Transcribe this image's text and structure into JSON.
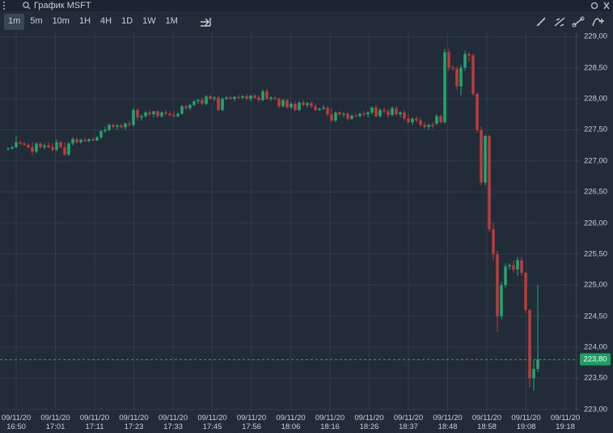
{
  "toolbar": {
    "title": "График MSFT",
    "timeframes": [
      "1m",
      "5m",
      "10m",
      "1H",
      "4H",
      "1D",
      "1W",
      "1M"
    ],
    "active_timeframe": 0
  },
  "chart_data": {
    "type": "candlestick",
    "up_color": "#22a66d",
    "down_color": "#bd3a3f",
    "grid": true,
    "ylim": [
      222.97,
      229.07
    ],
    "yticks": [
      {
        "value": 223,
        "label": "223,00"
      },
      {
        "value": 223.5,
        "label": "223,50"
      },
      {
        "value": 224,
        "label": "224,00"
      },
      {
        "value": 224.5,
        "label": "224,50"
      },
      {
        "value": 225,
        "label": "225,00"
      },
      {
        "value": 225.5,
        "label": "225,50"
      },
      {
        "value": 226,
        "label": "226,00"
      },
      {
        "value": 226.5,
        "label": "226,50"
      },
      {
        "value": 227,
        "label": "227,00"
      },
      {
        "value": 227.5,
        "label": "227,50"
      },
      {
        "value": 228,
        "label": "228,00"
      },
      {
        "value": 228.5,
        "label": "228,50"
      },
      {
        "value": 229,
        "label": "229,00"
      }
    ],
    "xlim": [
      -2,
      140.4
    ],
    "xticks": [
      {
        "value": 2,
        "label": "09/11/20 16:50"
      },
      {
        "value": 11.7,
        "label": "09/11/20 17:01"
      },
      {
        "value": 21.4,
        "label": "09/11/20 17:11"
      },
      {
        "value": 31.1,
        "label": "09/11/20 17:23"
      },
      {
        "value": 40.8,
        "label": "09/11/20 17:33"
      },
      {
        "value": 50.5,
        "label": "09/11/20 17:45"
      },
      {
        "value": 60.2,
        "label": "09/11/20 17:56"
      },
      {
        "value": 69.9,
        "label": "09/11/20 18:06"
      },
      {
        "value": 79.6,
        "label": "09/11/20 18:16"
      },
      {
        "value": 89.3,
        "label": "09/11/20 18:26"
      },
      {
        "value": 99,
        "label": "09/11/20 18:37"
      },
      {
        "value": 108.7,
        "label": "09/11/20 18:48"
      },
      {
        "value": 118.4,
        "label": "09/11/20 18:58"
      },
      {
        "value": 128.1,
        "label": "09/11/20 19:08"
      },
      {
        "value": 137.8,
        "label": "09/11/20 19:18"
      }
    ],
    "last_price_label": "223,80",
    "ohlc": [
      [
        227.2,
        227.22,
        227.17,
        227.2
      ],
      [
        227.2,
        227.24,
        227.18,
        227.22
      ],
      [
        227.22,
        227.4,
        227.2,
        227.3
      ],
      [
        227.3,
        227.32,
        227.25,
        227.28
      ],
      [
        227.28,
        227.3,
        227.24,
        227.26
      ],
      [
        227.26,
        227.28,
        227.2,
        227.22
      ],
      [
        227.22,
        227.3,
        227.1,
        227.15
      ],
      [
        227.15,
        227.3,
        227.12,
        227.28
      ],
      [
        227.28,
        227.3,
        227.2,
        227.22
      ],
      [
        227.22,
        227.28,
        227.18,
        227.25
      ],
      [
        227.25,
        227.3,
        227.2,
        227.22
      ],
      [
        227.22,
        227.28,
        227.15,
        227.18
      ],
      [
        227.18,
        227.35,
        227.15,
        227.3
      ],
      [
        227.3,
        227.32,
        227.2,
        227.22
      ],
      [
        227.22,
        227.3,
        227.08,
        227.1
      ],
      [
        227.1,
        227.3,
        227.08,
        227.28
      ],
      [
        227.28,
        227.38,
        227.25,
        227.35
      ],
      [
        227.35,
        227.38,
        227.28,
        227.3
      ],
      [
        227.3,
        227.36,
        227.28,
        227.34
      ],
      [
        227.34,
        227.38,
        227.3,
        227.32
      ],
      [
        227.32,
        227.36,
        227.3,
        227.35
      ],
      [
        227.35,
        227.38,
        227.32,
        227.33
      ],
      [
        227.33,
        227.4,
        227.32,
        227.38
      ],
      [
        227.38,
        227.5,
        227.35,
        227.48
      ],
      [
        227.48,
        227.55,
        227.45,
        227.5
      ],
      [
        227.5,
        227.6,
        227.48,
        227.58
      ],
      [
        227.58,
        227.6,
        227.52,
        227.55
      ],
      [
        227.55,
        227.6,
        227.5,
        227.57
      ],
      [
        227.57,
        227.6,
        227.52,
        227.54
      ],
      [
        227.54,
        227.62,
        227.5,
        227.6
      ],
      [
        227.6,
        227.65,
        227.55,
        227.58
      ],
      [
        227.58,
        227.85,
        227.55,
        227.82
      ],
      [
        227.82,
        227.85,
        227.65,
        227.7
      ],
      [
        227.7,
        227.75,
        227.65,
        227.72
      ],
      [
        227.72,
        227.8,
        227.7,
        227.78
      ],
      [
        227.78,
        227.82,
        227.72,
        227.75
      ],
      [
        227.75,
        227.8,
        227.7,
        227.8
      ],
      [
        227.8,
        227.82,
        227.7,
        227.72
      ],
      [
        227.72,
        227.8,
        227.7,
        227.78
      ],
      [
        227.78,
        227.82,
        227.74,
        227.76
      ],
      [
        227.76,
        227.8,
        227.72,
        227.74
      ],
      [
        227.74,
        227.8,
        227.7,
        227.72
      ],
      [
        227.72,
        227.78,
        227.7,
        227.76
      ],
      [
        227.76,
        227.9,
        227.74,
        227.88
      ],
      [
        227.88,
        227.9,
        227.82,
        227.85
      ],
      [
        227.85,
        227.92,
        227.82,
        227.9
      ],
      [
        227.9,
        227.98,
        227.88,
        227.96
      ],
      [
        227.96,
        228.0,
        227.92,
        227.98
      ],
      [
        227.98,
        228.02,
        227.9,
        227.92
      ],
      [
        227.92,
        228.06,
        227.9,
        228.04
      ],
      [
        228.04,
        228.06,
        227.98,
        228.0
      ],
      [
        228.0,
        228.04,
        227.96,
        228.02
      ],
      [
        228.02,
        228.05,
        227.8,
        227.82
      ],
      [
        227.82,
        228.02,
        227.8,
        228.0
      ],
      [
        228.0,
        228.04,
        227.98,
        228.02
      ],
      [
        228.02,
        228.05,
        227.98,
        228.0
      ],
      [
        228.0,
        228.04,
        227.96,
        228.03
      ],
      [
        228.03,
        228.06,
        228.0,
        228.02
      ],
      [
        228.02,
        228.06,
        228.0,
        228.04
      ],
      [
        228.04,
        228.08,
        227.98,
        228.0
      ],
      [
        228.0,
        228.06,
        227.96,
        228.05
      ],
      [
        228.05,
        228.08,
        228.0,
        228.02
      ],
      [
        228.02,
        228.06,
        227.95,
        227.98
      ],
      [
        227.98,
        228.15,
        227.96,
        228.12
      ],
      [
        228.12,
        228.16,
        227.98,
        228.0
      ],
      [
        228.0,
        228.04,
        227.96,
        228.02
      ],
      [
        228.02,
        228.04,
        227.98,
        228.0
      ],
      [
        228.0,
        228.02,
        227.85,
        227.88
      ],
      [
        227.88,
        228.0,
        227.86,
        227.98
      ],
      [
        227.98,
        228.0,
        227.84,
        227.86
      ],
      [
        227.86,
        227.95,
        227.84,
        227.92
      ],
      [
        227.92,
        227.96,
        227.8,
        227.82
      ],
      [
        227.82,
        227.96,
        227.8,
        227.94
      ],
      [
        227.94,
        227.98,
        227.88,
        227.9
      ],
      [
        227.9,
        227.95,
        227.86,
        227.93
      ],
      [
        227.93,
        227.96,
        227.85,
        227.88
      ],
      [
        227.88,
        227.92,
        227.8,
        227.82
      ],
      [
        227.82,
        227.86,
        227.8,
        227.84
      ],
      [
        227.84,
        227.9,
        227.82,
        227.86
      ],
      [
        227.86,
        227.88,
        227.72,
        227.75
      ],
      [
        227.75,
        227.85,
        227.62,
        227.65
      ],
      [
        227.65,
        227.8,
        227.62,
        227.78
      ],
      [
        227.78,
        227.8,
        227.72,
        227.75
      ],
      [
        227.75,
        227.78,
        227.7,
        227.76
      ],
      [
        227.76,
        227.78,
        227.65,
        227.68
      ],
      [
        227.68,
        227.75,
        227.66,
        227.73
      ],
      [
        227.73,
        227.76,
        227.7,
        227.72
      ],
      [
        227.72,
        227.78,
        227.7,
        227.76
      ],
      [
        227.76,
        227.8,
        227.72,
        227.75
      ],
      [
        227.75,
        227.8,
        227.7,
        227.78
      ],
      [
        227.78,
        227.88,
        227.75,
        227.86
      ],
      [
        227.86,
        227.9,
        227.7,
        227.72
      ],
      [
        227.72,
        227.85,
        227.7,
        227.82
      ],
      [
        227.82,
        227.86,
        227.76,
        227.8
      ],
      [
        227.8,
        227.84,
        227.7,
        227.74
      ],
      [
        227.74,
        227.88,
        227.72,
        227.85
      ],
      [
        227.85,
        227.88,
        227.72,
        227.75
      ],
      [
        227.75,
        227.8,
        227.7,
        227.78
      ],
      [
        227.78,
        227.82,
        227.65,
        227.68
      ],
      [
        227.68,
        227.75,
        227.6,
        227.62
      ],
      [
        227.62,
        227.7,
        227.58,
        227.68
      ],
      [
        227.68,
        227.72,
        227.62,
        227.65
      ],
      [
        227.65,
        227.7,
        227.55,
        227.58
      ],
      [
        227.58,
        227.62,
        227.52,
        227.55
      ],
      [
        227.55,
        227.6,
        227.5,
        227.58
      ],
      [
        227.58,
        227.62,
        227.52,
        227.56
      ],
      [
        227.6,
        227.75,
        227.58,
        227.72
      ],
      [
        227.72,
        227.75,
        227.6,
        227.62
      ],
      [
        227.62,
        228.8,
        227.6,
        228.75
      ],
      [
        228.75,
        228.8,
        228.45,
        228.5
      ],
      [
        228.5,
        228.55,
        228.45,
        228.48
      ],
      [
        228.48,
        228.52,
        228.15,
        228.2
      ],
      [
        228.2,
        228.55,
        228.05,
        228.5
      ],
      [
        228.5,
        228.78,
        228.45,
        228.72
      ],
      [
        228.72,
        228.75,
        228.6,
        228.7
      ],
      [
        228.7,
        228.72,
        228.05,
        228.08
      ],
      [
        228.08,
        228.1,
        227.45,
        227.5
      ],
      [
        227.5,
        227.55,
        226.6,
        226.65
      ],
      [
        226.65,
        227.42,
        226.6,
        227.4
      ],
      [
        227.4,
        227.42,
        225.85,
        225.9
      ],
      [
        225.9,
        226.0,
        225.4,
        225.5
      ],
      [
        225.5,
        225.55,
        224.25,
        224.5
      ],
      [
        224.5,
        225.05,
        224.45,
        225.0
      ],
      [
        225.0,
        225.35,
        224.95,
        225.3
      ],
      [
        225.3,
        225.35,
        225.25,
        225.32
      ],
      [
        225.32,
        225.4,
        225.2,
        225.25
      ],
      [
        225.25,
        225.45,
        225.15,
        225.4
      ],
      [
        225.4,
        225.45,
        225.15,
        225.2
      ],
      [
        225.2,
        225.2,
        224.55,
        224.6
      ],
      [
        224.6,
        224.62,
        223.35,
        223.5
      ],
      [
        223.5,
        223.8,
        223.3,
        223.65
      ],
      [
        223.65,
        225.0,
        223.6,
        223.8
      ]
    ]
  }
}
